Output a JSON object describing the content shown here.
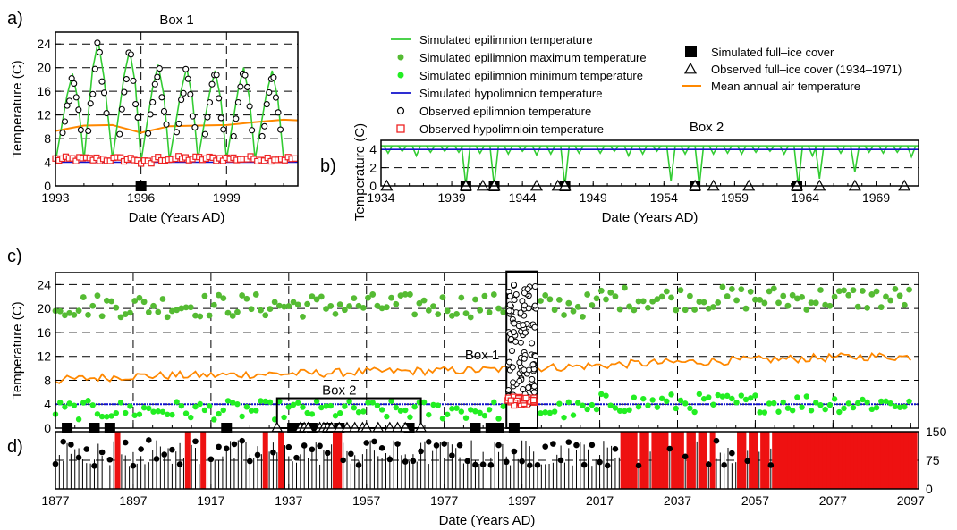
{
  "panel_letters": {
    "a": "a)",
    "b": "b)",
    "c": "c)",
    "d": "d)"
  },
  "colors": {
    "epi_sim": "#33cc33",
    "epi_max": "#55bb33",
    "epi_min": "#22ee22",
    "hypo_sim": "#1111cc",
    "obs_epi": "#000000",
    "obs_hypo": "#ee2222",
    "air": "#ff8800",
    "ice_sim": "#000000",
    "ice_obs": "#000000",
    "ice_bar": "#ee1111",
    "stem": "#000000"
  },
  "legend": {
    "left": [
      {
        "label": "Simulated epilimnion temperature",
        "symbol": "line",
        "color_key": "epi_sim"
      },
      {
        "label": "Simulated epilimnion maximum temperature",
        "symbol": "dot",
        "color_key": "epi_max"
      },
      {
        "label": "Simulated epilimnion minimum temperature",
        "symbol": "dot",
        "color_key": "epi_min"
      },
      {
        "label": "Simulated hypolimnion temperature",
        "symbol": "line",
        "color_key": "hypo_sim"
      },
      {
        "label": "Observed epilimnion temperature",
        "symbol": "circle",
        "color_key": "obs_epi"
      },
      {
        "label": "Observed hypolimnioin temperature",
        "symbol": "square-open",
        "color_key": "obs_hypo"
      }
    ],
    "right": [
      {
        "label": "Simulated full–ice cover",
        "symbol": "square-filled",
        "color_key": "ice_sim"
      },
      {
        "label": "Observed full–ice cover (1934–1971)",
        "symbol": "triangle",
        "color_key": "ice_obs"
      },
      {
        "label": "Mean annual air temperature",
        "symbol": "line",
        "color_key": "air"
      }
    ]
  },
  "chart_data": [
    {
      "id": "a",
      "type": "line",
      "title": "Box 1",
      "xlabel": "Date (Years AD)",
      "ylabel": "Temperature (C)",
      "xlim": [
        1993,
        2001.5
      ],
      "ylim": [
        0,
        26
      ],
      "xticks": [
        1993,
        1996,
        1999
      ],
      "yticks": [
        0,
        4,
        8,
        12,
        16,
        20,
        24
      ],
      "grid": "dashed",
      "epi_sim_peaks": [
        [
          1993.6,
          19
        ],
        [
          1994.5,
          24.5
        ],
        [
          1995.6,
          23
        ],
        [
          1996.6,
          20.5
        ],
        [
          1997.6,
          20
        ],
        [
          1998.6,
          19.5
        ],
        [
          1999.6,
          20
        ],
        [
          2000.6,
          19.5
        ]
      ],
      "epi_sim_troughs": [
        [
          1993,
          4
        ],
        [
          1994,
          4.3
        ],
        [
          1995,
          4.5
        ],
        [
          1996,
          4.0
        ],
        [
          1997,
          4.3
        ],
        [
          1998,
          4.5
        ],
        [
          1999,
          4.5
        ],
        [
          2000,
          4.5
        ],
        [
          2001,
          4.5
        ]
      ],
      "air_temp": [
        [
          1993,
          9.3
        ],
        [
          1994,
          10.2
        ],
        [
          1995,
          10.3
        ],
        [
          1996,
          9.0
        ],
        [
          1997,
          10.1
        ],
        [
          1998,
          10.2
        ],
        [
          1999,
          10.3
        ],
        [
          2000,
          10.8
        ],
        [
          2001,
          11.2
        ],
        [
          2001.5,
          11.1
        ]
      ],
      "hypo_obs_level": 4.5,
      "ice_sim_years": [
        1996.0
      ]
    },
    {
      "id": "b",
      "type": "line",
      "title": "Box 2",
      "xlabel": "Date (Years AD)",
      "ylabel": "Temperature (C)",
      "xlim": [
        1934,
        1972
      ],
      "ylim": [
        0,
        5
      ],
      "xticks": [
        1934,
        1939,
        1944,
        1949,
        1954,
        1959,
        1964,
        1969
      ],
      "yticks": [
        0,
        2,
        4
      ],
      "grid": "dashed",
      "hypo_level": 4,
      "winter_dips": [
        [
          1934.5,
          3.6
        ],
        [
          1935.5,
          3.8
        ],
        [
          1936.5,
          3.3
        ],
        [
          1937.5,
          3.7
        ],
        [
          1938.5,
          3.8
        ],
        [
          1939.5,
          3.7
        ],
        [
          1940.0,
          0.0
        ],
        [
          1941.0,
          3.6
        ],
        [
          1942.0,
          0.0
        ],
        [
          1943.0,
          3.5
        ],
        [
          1944.0,
          3.8
        ],
        [
          1945.0,
          3.4
        ],
        [
          1946.0,
          3.5
        ],
        [
          1947.0,
          0.0
        ],
        [
          1948.0,
          3.6
        ],
        [
          1949.5,
          3.6
        ],
        [
          1950.5,
          3.8
        ],
        [
          1951.5,
          3.3
        ],
        [
          1952.5,
          3.5
        ],
        [
          1953.5,
          3.8
        ],
        [
          1954.5,
          0.5
        ],
        [
          1955.5,
          3.5
        ],
        [
          1956.5,
          0.0
        ],
        [
          1957.5,
          3.5
        ],
        [
          1958.5,
          3.6
        ],
        [
          1959.5,
          3.5
        ],
        [
          1960.5,
          3.7
        ],
        [
          1961.5,
          3.8
        ],
        [
          1962.5,
          3.5
        ],
        [
          1963.5,
          0.0
        ],
        [
          1964.5,
          3.3
        ],
        [
          1965.0,
          0.8
        ],
        [
          1966.5,
          3.6
        ],
        [
          1967.5,
          1.5
        ],
        [
          1968.5,
          3.7
        ],
        [
          1969.5,
          3.6
        ],
        [
          1970.5,
          3.7
        ],
        [
          1971.5,
          3.2
        ]
      ],
      "ice_sim_years": [
        1940.0,
        1942.0,
        1947.0,
        1956.2,
        1963.4
      ],
      "ice_obs_years": [
        1934.4,
        1940.0,
        1941.2,
        1942.0,
        1945.0,
        1946.5,
        1947.0,
        1956.2,
        1957.5,
        1960.0,
        1963.4,
        1965.0,
        1967.5,
        1971.0
      ]
    },
    {
      "id": "c",
      "type": "scatter",
      "xlabel": "",
      "ylabel": "Temperature (C)",
      "xlim": [
        1877,
        2099
      ],
      "ylim": [
        0,
        26
      ],
      "yticks": [
        0,
        4,
        8,
        12,
        16,
        20,
        24
      ],
      "grid": "dashed",
      "annotations": [
        "Box 1",
        "Box 2"
      ],
      "max_temp_mean": 20.5,
      "min_temp_mean": 3.0,
      "hypo_level": 4,
      "air_temp": [
        [
          1877,
          8.0
        ],
        [
          1887,
          8.4
        ],
        [
          1897,
          8.7
        ],
        [
          1907,
          8.8
        ],
        [
          1917,
          8.8
        ],
        [
          1927,
          9.0
        ],
        [
          1937,
          9.1
        ],
        [
          1947,
          9.2
        ],
        [
          1957,
          9.4
        ],
        [
          1967,
          9.5
        ],
        [
          1977,
          9.6
        ],
        [
          1987,
          9.7
        ],
        [
          1997,
          10.0
        ],
        [
          2007,
          10.2
        ],
        [
          2017,
          10.5
        ],
        [
          2027,
          10.8
        ],
        [
          2037,
          11.0
        ],
        [
          2047,
          11.2
        ],
        [
          2057,
          11.4
        ],
        [
          2067,
          11.6
        ],
        [
          2077,
          11.8
        ],
        [
          2087,
          12.0
        ],
        [
          2097,
          11.9
        ]
      ],
      "ice_sim_years": [
        1880,
        1887,
        1891,
        1921,
        1938,
        1940,
        1943,
        1947,
        1950,
        1968,
        1985,
        1989,
        1991,
        1995
      ],
      "ice_obs_years": [
        1934,
        1940,
        1941,
        1942,
        1945,
        1946,
        1947,
        1948,
        1950,
        1952,
        1954,
        1956,
        1957,
        1960,
        1963,
        1965,
        1967,
        1971
      ],
      "box1_range": [
        1993,
        2001
      ],
      "box2_range": [
        1934,
        1971
      ]
    },
    {
      "id": "d",
      "type": "bar",
      "xlabel": "Date (Years AD)",
      "ylabel": "",
      "xlim": [
        1877,
        2099
      ],
      "ylim": [
        0,
        150
      ],
      "xticks": [
        1877,
        1897,
        1917,
        1937,
        1957,
        1977,
        1997,
        2017,
        2037,
        2057,
        2077,
        2097
      ],
      "yticks": [
        0,
        75,
        150
      ],
      "stem_values_mean": 95,
      "ice_years": [
        1893,
        1911,
        1915,
        1931,
        1935,
        1949,
        1950,
        2023,
        2024,
        2025,
        2026,
        2028,
        2029,
        2031,
        2032,
        2033,
        2034,
        2036,
        2037,
        2038,
        2040,
        2041,
        2043,
        2044,
        2046,
        2053,
        2054,
        2056,
        2057,
        2059,
        2060,
        2062,
        2063,
        2064,
        2065,
        2066,
        2067,
        2068,
        2069,
        2070,
        2071,
        2072,
        2073,
        2074,
        2075,
        2076,
        2077,
        2078,
        2079,
        2080,
        2081,
        2082,
        2083,
        2084,
        2085,
        2086,
        2087,
        2088,
        2089,
        2090,
        2091,
        2092,
        2093,
        2094,
        2095,
        2096,
        2097,
        2098
      ]
    }
  ]
}
